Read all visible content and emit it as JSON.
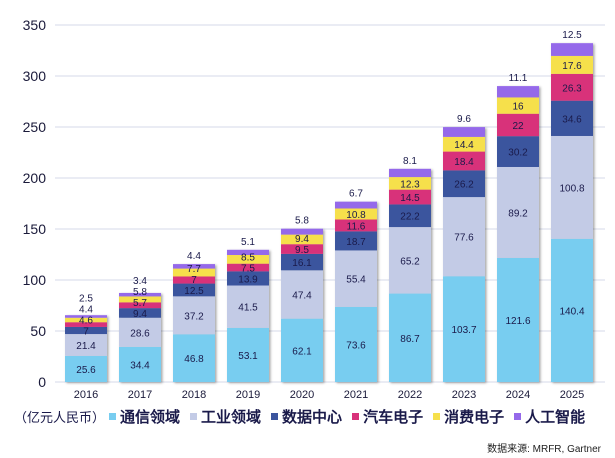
{
  "chart_data": {
    "type": "bar",
    "stacked": true,
    "categories": [
      "2016",
      "2017",
      "2018",
      "2019",
      "2020",
      "2021",
      "2022",
      "2023",
      "2024",
      "2025"
    ],
    "series": [
      {
        "name": "通信领域",
        "color": "#78cdf0",
        "values": [
          25.6,
          34.4,
          46.8,
          53.1,
          62.1,
          73.6,
          86.7,
          103.7,
          121.6,
          140.4
        ]
      },
      {
        "name": "工业领域",
        "color": "#c3cbe6",
        "values": [
          21.4,
          28.6,
          37.2,
          41.5,
          47.4,
          55.4,
          65.2,
          77.6,
          89.2,
          100.8
        ]
      },
      {
        "name": "数据中心",
        "color": "#3b559e",
        "values": [
          7,
          9.4,
          12.5,
          13.9,
          16.1,
          18.7,
          22.2,
          26.2,
          30.2,
          34.6
        ]
      },
      {
        "name": "汽车电子",
        "color": "#d8327a",
        "values": [
          4.6,
          5.7,
          7,
          7.5,
          9.5,
          11.6,
          14.5,
          18.4,
          22,
          26.3
        ]
      },
      {
        "name": "消费电子",
        "color": "#f6e04c",
        "values": [
          4.4,
          5.8,
          7.7,
          8.5,
          9.4,
          10.8,
          12.3,
          14.4,
          16,
          17.6
        ]
      },
      {
        "name": "人工智能",
        "color": "#9569ea",
        "values": [
          2.5,
          3.4,
          4.4,
          5.1,
          5.8,
          6.7,
          8.1,
          9.6,
          11.1,
          12.5
        ]
      }
    ],
    "ylim": [
      0,
      350
    ],
    "yticks": [
      0,
      50,
      100,
      150,
      200,
      250,
      300,
      350
    ],
    "grid": true,
    "unit_label": "（亿元人民币）",
    "legend_placement": "bottom",
    "source": "数据来源: MRFR, Gartner"
  }
}
